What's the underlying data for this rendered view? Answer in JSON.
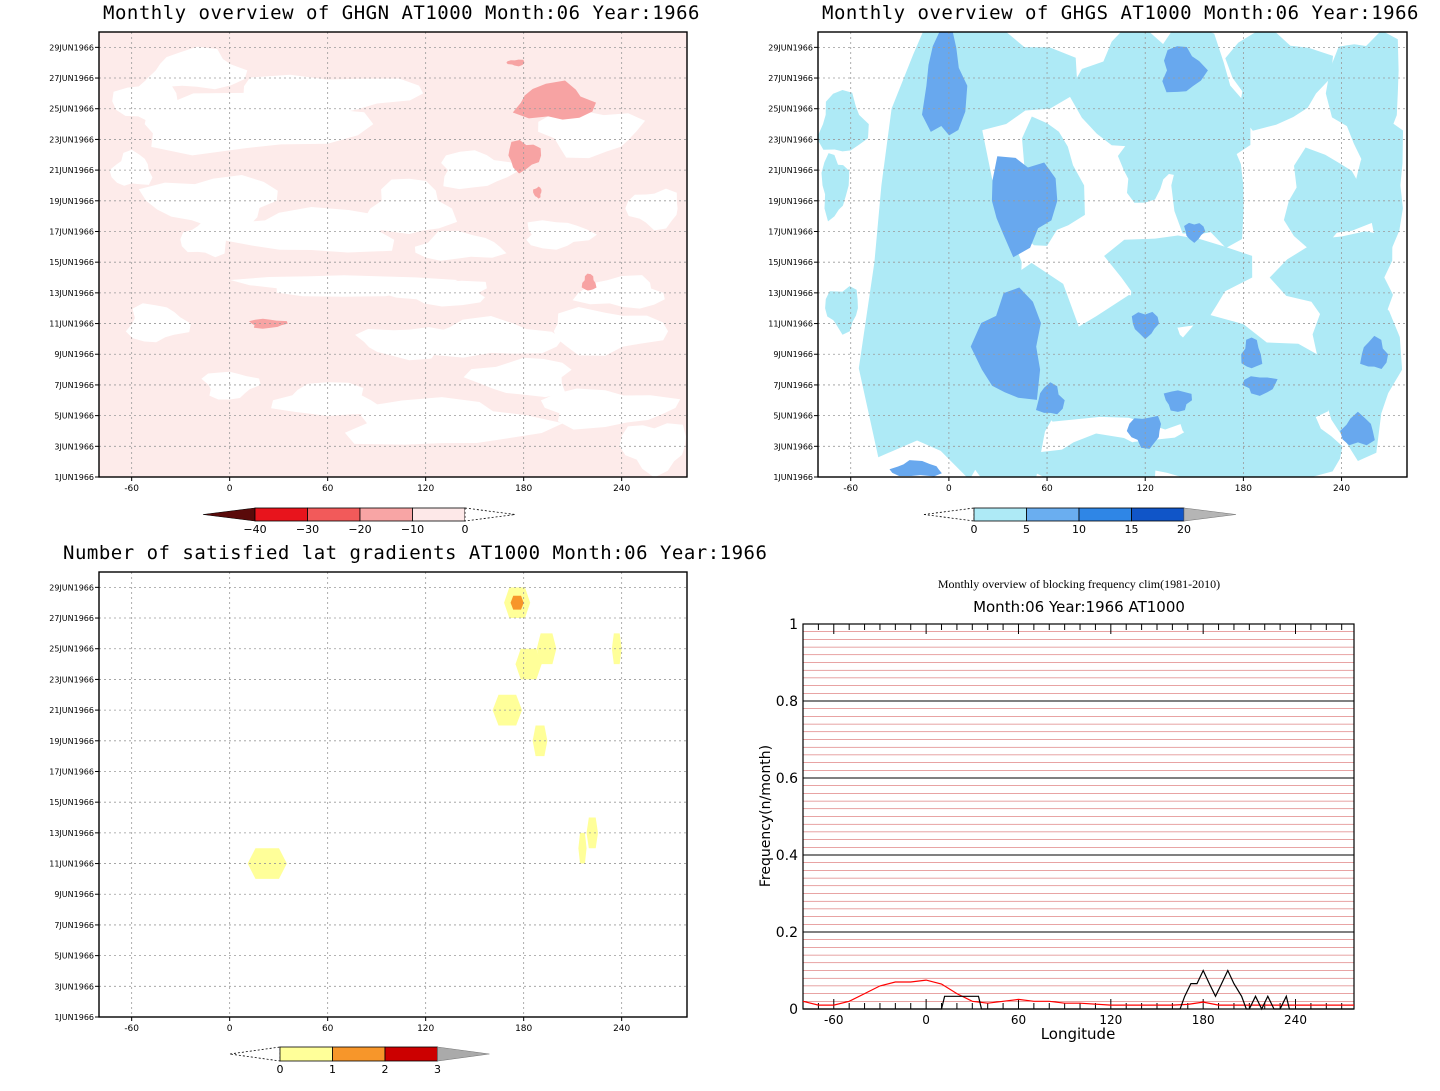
{
  "chart_data": [
    {
      "type": "heatmap",
      "title": "Monthly overview of GHGN AT1000 Month:06 Year:1966",
      "x_ticks": [
        -60,
        0,
        60,
        120,
        180,
        240
      ],
      "xlim": [
        -80,
        280
      ],
      "y_ticks": [
        "1JUN1966",
        "3JUN1966",
        "5JUN1966",
        "7JUN1966",
        "9JUN1966",
        "11JUN1966",
        "13JUN1966",
        "15JUN1966",
        "17JUN1966",
        "19JUN1966",
        "21JUN1966",
        "23JUN1966",
        "25JUN1966",
        "27JUN1966",
        "29JUN1966"
      ],
      "colorbar": {
        "levels": [
          -40,
          -30,
          -20,
          -10,
          0
        ],
        "colors": [
          "#5a0a0a",
          "#e8141c",
          "#f25a5a",
          "#f8a5a5",
          "#fde8e8",
          "#ffffff"
        ]
      },
      "fields": {
        "background": "#fdebea",
        "zero_region": "#ffffff",
        "contour_-10": "#f7a3a3"
      },
      "regions": [
        {
          "level": "-10 to -20",
          "lon": [
            176,
            222
          ],
          "day": [
            24.2,
            26.6
          ]
        },
        {
          "level": "-10 to -20",
          "lon": [
            170,
            190
          ],
          "day": [
            21,
            22.9
          ]
        },
        {
          "level": "-10 to -20",
          "lon": [
            186,
            191
          ],
          "day": [
            19.2,
            19.9
          ]
        },
        {
          "level": "-10 to -20",
          "lon": [
            216,
            224
          ],
          "day": [
            13.1,
            14.2
          ]
        },
        {
          "level": "-10 to -20",
          "lon": [
            12,
            34
          ],
          "day": [
            10.7,
            11.3
          ]
        },
        {
          "level": "-10 to -20",
          "lon": [
            170,
            181
          ],
          "day": [
            27.8,
            28.2
          ]
        }
      ]
    },
    {
      "type": "heatmap",
      "title": "Monthly overview of GHGS AT1000 Month:06 Year:1966",
      "x_ticks": [
        -60,
        0,
        60,
        120,
        180,
        240
      ],
      "xlim": [
        -80,
        280
      ],
      "y_ticks": [
        "1JUN1966",
        "3JUN1966",
        "5JUN1966",
        "7JUN1966",
        "9JUN1966",
        "11JUN1966",
        "13JUN1966",
        "15JUN1966",
        "17JUN1966",
        "19JUN1966",
        "21JUN1966",
        "23JUN1966",
        "25JUN1966",
        "27JUN1966",
        "29JUN1966"
      ],
      "colorbar": {
        "levels": [
          0,
          5,
          10,
          15,
          20
        ],
        "colors": [
          "#ffffff",
          "#aeeaf6",
          "#6aaef0",
          "#2f86e6",
          "#1055c8",
          "#b5b5b5"
        ]
      },
      "fields": {
        "zero_region": "#ffffff",
        "contour_0": "#aeeaf6",
        "contour_5": "#68a8ee"
      },
      "regions": [
        {
          "level": "5 to 10",
          "lon": [
            -15,
            10
          ],
          "day": [
            23,
            30
          ]
        },
        {
          "level": "5 to 10",
          "lon": [
            25,
            65
          ],
          "day": [
            16,
            22
          ]
        },
        {
          "level": "5 to 10",
          "lon": [
            18,
            58
          ],
          "day": [
            6,
            13
          ]
        },
        {
          "level": "5 to 10",
          "lon": [
            130,
            155
          ],
          "day": [
            26,
            29
          ]
        },
        {
          "level": "5 to 10",
          "lon": [
            110,
            130
          ],
          "day": [
            3,
            5
          ]
        },
        {
          "level": "5 to 10",
          "lon": [
            -35,
            -5
          ],
          "day": [
            1,
            2
          ]
        }
      ]
    },
    {
      "type": "heatmap",
      "title": "Number of satisfied lat gradients AT1000 Month:06 Year:1966",
      "x_ticks": [
        -60,
        0,
        60,
        120,
        180,
        240
      ],
      "xlim": [
        -80,
        280
      ],
      "y_ticks": [
        "1JUN1966",
        "3JUN1966",
        "5JUN1966",
        "7JUN1966",
        "9JUN1966",
        "11JUN1966",
        "13JUN1966",
        "15JUN1966",
        "17JUN1966",
        "19JUN1966",
        "21JUN1966",
        "23JUN1966",
        "25JUN1966",
        "27JUN1966",
        "29JUN1966"
      ],
      "colorbar": {
        "levels": [
          0,
          1,
          2,
          3
        ],
        "colors": [
          "#ffffff",
          "#ffff99",
          "#f7962a",
          "#cc0000",
          "#aaaaaa"
        ]
      },
      "regions": [
        {
          "value": 1,
          "lon": 176,
          "day": 28.0,
          "w": 16,
          "h": 2.0
        },
        {
          "value": 2,
          "lon": 176,
          "day": 28.0,
          "w": 8,
          "h": 0.9
        },
        {
          "value": 1,
          "lon": 194,
          "day": 25.0,
          "w": 12,
          "h": 2.0
        },
        {
          "value": 1,
          "lon": 183,
          "day": 24.0,
          "w": 16,
          "h": 2.0
        },
        {
          "value": 1,
          "lon": 237,
          "day": 25.0,
          "w": 6,
          "h": 2.0
        },
        {
          "value": 1,
          "lon": 170,
          "day": 21.0,
          "w": 18,
          "h": 2.0
        },
        {
          "value": 1,
          "lon": 190,
          "day": 19.0,
          "w": 9,
          "h": 2.0
        },
        {
          "value": 1,
          "lon": 222,
          "day": 13.0,
          "w": 7,
          "h": 2.0
        },
        {
          "value": 1,
          "lon": 216,
          "day": 12.0,
          "w": 5,
          "h": 2.0
        },
        {
          "value": 1,
          "lon": 23,
          "day": 11.0,
          "w": 24,
          "h": 2.0
        }
      ]
    },
    {
      "type": "line",
      "title": "Monthly overview of blocking frequency clim(1981-2010)",
      "subtitle": "Month:06 Year:1966  AT1000",
      "xlabel": "Longitude",
      "ylabel": "Frequency(n/month)",
      "xlim": [
        -80,
        278
      ],
      "ylim": [
        0,
        1
      ],
      "x_ticks": [
        -60,
        0,
        60,
        120,
        180,
        240
      ],
      "y_ticks": [
        0,
        0.2,
        0.4,
        0.6,
        0.8,
        1
      ],
      "series": [
        {
          "color": "#ff0000",
          "x": [
            -80,
            -70,
            -60,
            -50,
            -40,
            -30,
            -20,
            -10,
            0,
            10,
            20,
            30,
            40,
            50,
            60,
            70,
            80,
            90,
            100,
            120,
            140,
            160,
            170,
            180,
            190,
            200,
            220,
            240,
            260,
            278
          ],
          "y": [
            0.02,
            0.01,
            0.01,
            0.02,
            0.04,
            0.06,
            0.07,
            0.07,
            0.075,
            0.065,
            0.04,
            0.02,
            0.015,
            0.02,
            0.025,
            0.02,
            0.02,
            0.015,
            0.015,
            0.01,
            0.01,
            0.01,
            0.012,
            0.018,
            0.01,
            0.01,
            0.01,
            0.01,
            0.01,
            0.01
          ]
        },
        {
          "color": "#000000",
          "x": [
            -80,
            10,
            12,
            34,
            36,
            165,
            168,
            172,
            176,
            180,
            184,
            188,
            192,
            196,
            200,
            205,
            208,
            210,
            214,
            218,
            222,
            226,
            230,
            234,
            236,
            278
          ],
          "y": [
            0,
            0,
            0.033,
            0.033,
            0,
            0,
            0.033,
            0.066,
            0.066,
            0.1,
            0.066,
            0.033,
            0.066,
            0.1,
            0.066,
            0.033,
            0,
            0,
            0.033,
            0,
            0.033,
            0,
            0,
            0.033,
            0,
            0
          ]
        }
      ]
    }
  ]
}
